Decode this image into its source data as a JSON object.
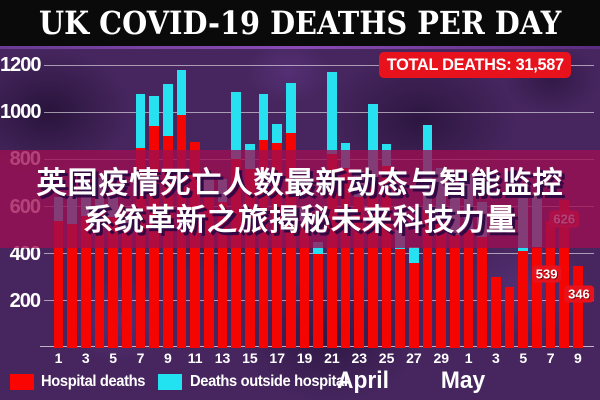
{
  "title": "UK COVID-19 DEATHS PER DAY",
  "total_badge": "TOTAL DEATHS: 31,587",
  "overlay_text": {
    "line1": "英国疫情死亡人数最新动态与智能监控",
    "line2": "系统革新之旅揭秘未来科技力量"
  },
  "months": {
    "april": "April",
    "may": "May"
  },
  "legend": [
    {
      "label": "Hospital deaths",
      "color": "#fb0502"
    },
    {
      "label": "Deaths outside hospital",
      "color": "#22e2f2"
    }
  ],
  "colors": {
    "background": "#47265f",
    "title_bg": "#0a0a0a",
    "badge_bg": "#e8121c",
    "overlay_band": "#9e0e52",
    "hospital_bar": "#f50502",
    "outside_bar": "#27e0f0",
    "gridline": "#ffffff"
  },
  "chart_data": {
    "type": "bar",
    "stacked": true,
    "title": "UK COVID-19 DEATHS PER DAY",
    "xlabel": "",
    "ylabel": "",
    "ylim": [
      0,
      1270
    ],
    "y_ticks": [
      200,
      400,
      600,
      800,
      1000,
      1200
    ],
    "x_tick_labels_april": [
      1,
      3,
      5,
      7,
      9,
      11,
      13,
      15,
      17,
      19,
      21,
      23,
      25,
      27,
      29
    ],
    "x_tick_labels_may": [
      1,
      3,
      5,
      7,
      9
    ],
    "legend_position": "bottom",
    "grid": true,
    "categories": [
      "Apr 1",
      "Apr 2",
      "Apr 3",
      "Apr 4",
      "Apr 5",
      "Apr 6",
      "Apr 7",
      "Apr 8",
      "Apr 9",
      "Apr 10",
      "Apr 11",
      "Apr 12",
      "Apr 13",
      "Apr 14",
      "Apr 15",
      "Apr 16",
      "Apr 17",
      "Apr 18",
      "Apr 19",
      "Apr 20",
      "Apr 21",
      "Apr 22",
      "Apr 23",
      "Apr 24",
      "Apr 25",
      "Apr 26",
      "Apr 27",
      "Apr 28",
      "Apr 29",
      "Apr 30",
      "May 1",
      "May 2",
      "May 3",
      "May 4",
      "May 5",
      "May 6",
      "May 7",
      "May 8",
      "May 9"
    ],
    "series": [
      {
        "name": "Hospital deaths",
        "color": "#f50502",
        "values": [
          540,
          525,
          560,
          580,
          555,
          500,
          850,
          940,
          900,
          990,
          875,
          640,
          620,
          800,
          761,
          880,
          870,
          910,
          540,
          400,
          823,
          763,
          640,
          700,
          770,
          420,
          360,
          586,
          550,
          480,
          500,
          470,
          300,
          260,
          411,
          429,
          539,
          626,
          346
        ]
      },
      {
        "name": "Deaths outside hospital",
        "color": "#27e0f0",
        "values": [
          100,
          125,
          120,
          140,
          85,
          60,
          228,
          130,
          220,
          190,
          0,
          97,
          97,
          287,
          105,
          195,
          78,
          212,
          56,
          49,
          349,
          107,
          110,
          335,
          96,
          80,
          70,
          358,
          215,
          194,
          239,
          151,
          0,
          0,
          282,
          220,
          0,
          0,
          0
        ]
      }
    ],
    "annotations": [
      {
        "category": "May 7",
        "value": "539"
      },
      {
        "category": "May 8",
        "value": "626"
      },
      {
        "category": "May 9",
        "value": "346"
      }
    ],
    "total_deaths": "31,587"
  }
}
